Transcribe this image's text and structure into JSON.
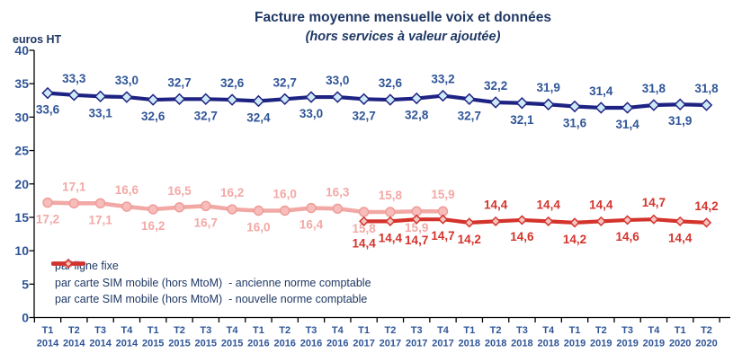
{
  "title": "Facture moyenne mensuelle voix et données",
  "subtitle": "(hors services à valeur ajoutée)",
  "y_axis_unit": "euros HT",
  "colors": {
    "title_navy": "#1F3864",
    "axis_label_blue": "#2F5597",
    "axis_line": "#000000",
    "series_blue": "#1E2383",
    "series_pink": "#F2A9A6",
    "series_red": "#D4332C"
  },
  "chart_data": {
    "type": "line",
    "x": [
      "T1 2014",
      "T2 2014",
      "T3 2014",
      "T4 2014",
      "T1 2015",
      "T2 2015",
      "T3 2015",
      "T4 2015",
      "T1 2016",
      "T2 2016",
      "T3 2016",
      "T4 2016",
      "T1 2017",
      "T2 2017",
      "T3 2017",
      "T4 2017",
      "T1 2018",
      "T2 2018",
      "T3 2018",
      "T4 2018",
      "T1 2019",
      "T2 2019",
      "T3 2019",
      "T4 2019",
      "T1 2020",
      "T2 2020"
    ],
    "ylim": [
      0,
      40
    ],
    "y_ticks": [
      0,
      5,
      10,
      15,
      20,
      25,
      30,
      35,
      40
    ],
    "grid": false,
    "legend_position": "bottom-left",
    "series": [
      {
        "name": "par ligne fixe",
        "start_index": 0,
        "values": [
          33.6,
          33.3,
          33.1,
          33.0,
          32.6,
          32.7,
          32.7,
          32.6,
          32.4,
          32.7,
          33.0,
          33.0,
          32.7,
          32.6,
          32.8,
          33.2,
          32.7,
          32.2,
          32.1,
          31.9,
          31.6,
          31.4,
          31.4,
          31.8,
          31.9,
          31.8
        ],
        "labels_side": [
          "below",
          "above",
          "below",
          "above",
          "below",
          "above",
          "below",
          "above",
          "below",
          "above",
          "below",
          "above",
          "below",
          "above",
          "below",
          "above",
          "below",
          "above",
          "below",
          "above",
          "below",
          "above",
          "below",
          "above",
          "below",
          "above"
        ],
        "color": "#1E2383",
        "label_color": "#2F5597",
        "marker": "diamond",
        "marker_fill": "#CDEAF6",
        "marker_stroke": "#1E2383",
        "marker_size": 4,
        "line_width": 4.2
      },
      {
        "name": "par carte SIM mobile (hors MtoM)  - ancienne norme comptable",
        "start_index": 0,
        "values": [
          17.2,
          17.1,
          17.1,
          16.6,
          16.2,
          16.5,
          16.7,
          16.2,
          16.0,
          16.0,
          16.4,
          16.3,
          15.8,
          15.8,
          15.9,
          15.9
        ],
        "labels_side": [
          "below",
          "above",
          "below",
          "above",
          "below",
          "above",
          "below",
          "above",
          "below",
          "above",
          "below",
          "above",
          "below",
          "above",
          "below",
          "above"
        ],
        "color": "#F2A9A6",
        "label_color": "#F2A9A6",
        "marker": "circle",
        "marker_fill": "#F6BDBA",
        "marker_stroke": "#EE9A96",
        "marker_size": 5,
        "line_width": 4.6
      },
      {
        "name": "par carte SIM mobile (hors MtoM)  - nouvelle norme comptable",
        "start_index": 12,
        "values": [
          14.4,
          14.4,
          14.7,
          14.7,
          14.2,
          14.4,
          14.6,
          14.4,
          14.2,
          14.4,
          14.6,
          14.7,
          14.4,
          14.2
        ],
        "labels_side": [
          "below",
          "below",
          "below",
          "below",
          "below",
          "above",
          "below",
          "above",
          "below",
          "above",
          "below",
          "above",
          "below",
          "above"
        ],
        "labels_dy": [
          6,
          0,
          5,
          0,
          0,
          0,
          0,
          0,
          0,
          0,
          0,
          0,
          0,
          0
        ],
        "color": "#D4332C",
        "label_color": "#D4332C",
        "marker": "diamond",
        "marker_fill": "#F5C6C0",
        "marker_stroke": "#D4332C",
        "marker_size": 3.2,
        "line_width": 4.2
      }
    ]
  }
}
